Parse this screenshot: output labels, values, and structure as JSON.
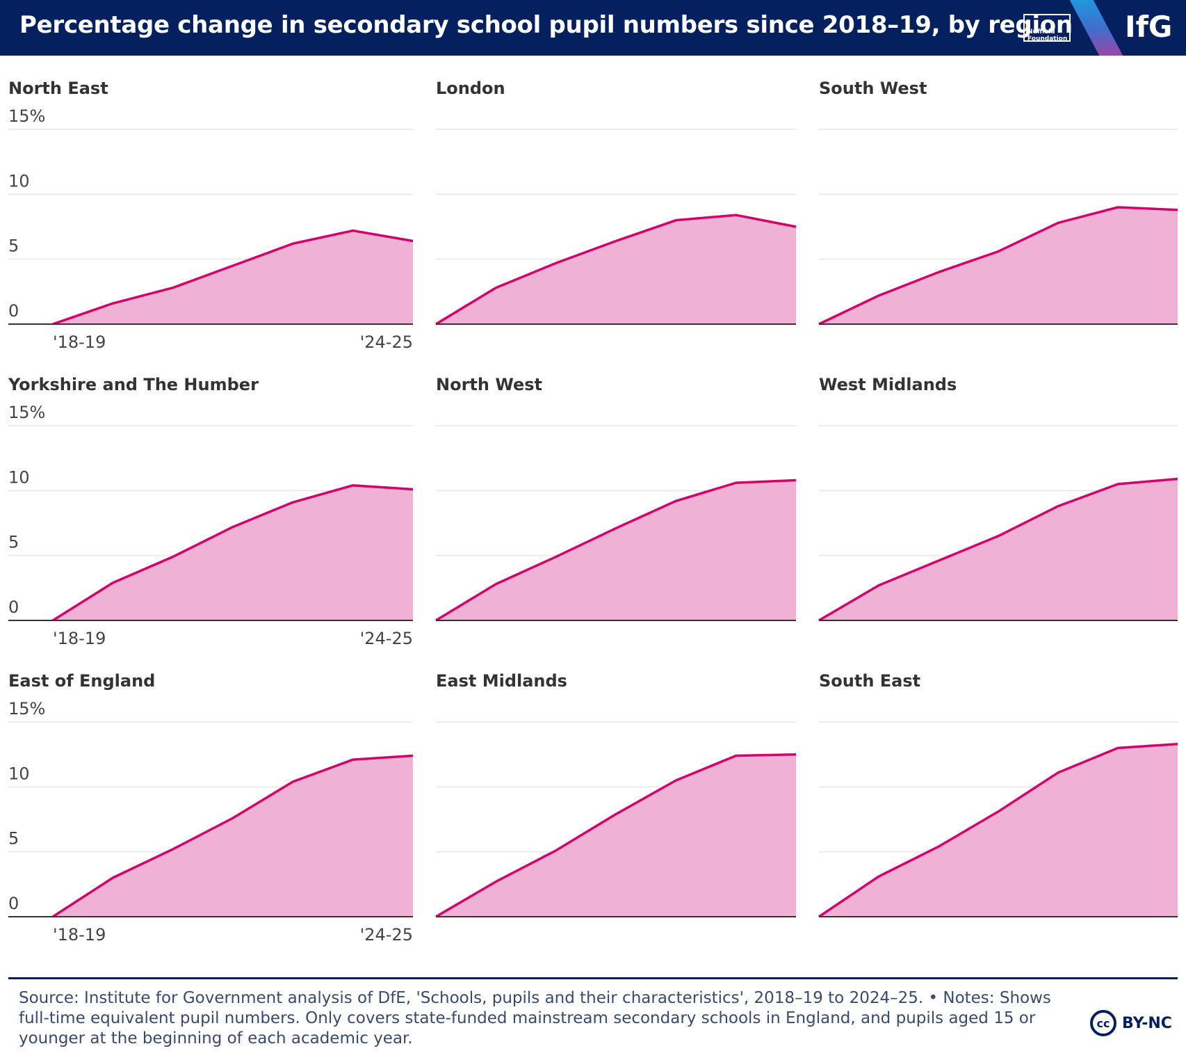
{
  "header": {
    "title": "Percentage change in secondary school pupil numbers since 2018–19, by region",
    "nuffield_logo": "Nuffield Foundation",
    "ifg_logo": "IfG"
  },
  "colors": {
    "header_bg": "#05205e",
    "line": "#d4006b",
    "area": "#f0b2d4",
    "grid": "#e6e6e6",
    "axis": "#333333"
  },
  "chart_data": [
    {
      "type": "area",
      "title": "North East",
      "x": [
        "'18-19",
        "'19-20",
        "'20-21",
        "'21-22",
        "'22-23",
        "'23-24",
        "'24-25"
      ],
      "y": [
        0,
        1.6,
        2.8,
        4.5,
        6.2,
        7.2,
        6.4
      ],
      "ylim": [
        0,
        15
      ],
      "yticks": [
        "0",
        "5",
        "10",
        "15%"
      ],
      "xtick_labels": [
        "'18-19",
        "'24-25"
      ]
    },
    {
      "type": "area",
      "title": "London",
      "x": [
        "'18-19",
        "'19-20",
        "'20-21",
        "'21-22",
        "'22-23",
        "'23-24",
        "'24-25"
      ],
      "y": [
        0,
        2.8,
        4.7,
        6.4,
        8.0,
        8.4,
        7.5
      ],
      "ylim": [
        0,
        15
      ]
    },
    {
      "type": "area",
      "title": "South West",
      "x": [
        "'18-19",
        "'19-20",
        "'20-21",
        "'21-22",
        "'22-23",
        "'23-24",
        "'24-25"
      ],
      "y": [
        0,
        2.2,
        4.0,
        5.6,
        7.8,
        9.0,
        8.8
      ],
      "ylim": [
        0,
        15
      ]
    },
    {
      "type": "area",
      "title": "Yorkshire and The Humber",
      "x": [
        "'18-19",
        "'19-20",
        "'20-21",
        "'21-22",
        "'22-23",
        "'23-24",
        "'24-25"
      ],
      "y": [
        0,
        2.9,
        4.9,
        7.2,
        9.1,
        10.4,
        10.1
      ],
      "ylim": [
        0,
        15
      ],
      "yticks": [
        "0",
        "5",
        "10",
        "15%"
      ],
      "xtick_labels": [
        "'18-19",
        "'24-25"
      ]
    },
    {
      "type": "area",
      "title": "North West",
      "x": [
        "'18-19",
        "'19-20",
        "'20-21",
        "'21-22",
        "'22-23",
        "'23-24",
        "'24-25"
      ],
      "y": [
        0,
        2.8,
        4.9,
        7.1,
        9.2,
        10.6,
        10.8
      ],
      "ylim": [
        0,
        15
      ]
    },
    {
      "type": "area",
      "title": "West Midlands",
      "x": [
        "'18-19",
        "'19-20",
        "'20-21",
        "'21-22",
        "'22-23",
        "'23-24",
        "'24-25"
      ],
      "y": [
        0,
        2.7,
        4.6,
        6.5,
        8.8,
        10.5,
        10.9
      ],
      "ylim": [
        0,
        15
      ]
    },
    {
      "type": "area",
      "title": "East of England",
      "x": [
        "'18-19",
        "'19-20",
        "'20-21",
        "'21-22",
        "'22-23",
        "'23-24",
        "'24-25"
      ],
      "y": [
        0,
        3.0,
        5.2,
        7.6,
        10.4,
        12.1,
        12.4
      ],
      "ylim": [
        0,
        15
      ],
      "yticks": [
        "0",
        "5",
        "10",
        "15%"
      ],
      "xtick_labels": [
        "'18-19",
        "'24-25"
      ]
    },
    {
      "type": "area",
      "title": "East Midlands",
      "x": [
        "'18-19",
        "'19-20",
        "'20-21",
        "'21-22",
        "'22-23",
        "'23-24",
        "'24-25"
      ],
      "y": [
        0,
        2.7,
        5.1,
        7.9,
        10.5,
        12.4,
        12.5
      ],
      "ylim": [
        0,
        15
      ]
    },
    {
      "type": "area",
      "title": "South East",
      "x": [
        "'18-19",
        "'19-20",
        "'20-21",
        "'21-22",
        "'22-23",
        "'23-24",
        "'24-25"
      ],
      "y": [
        0,
        3.1,
        5.4,
        8.1,
        11.1,
        13.0,
        13.3
      ],
      "ylim": [
        0,
        15
      ]
    }
  ],
  "footer": {
    "source": "Source: Institute for Government analysis of DfE, 'Schools, pupils and their characteristics', 2018–19 to 2024–25. • Notes: Shows full-time equivalent pupil numbers. Only covers state-funded mainstream secondary schools in England, and pupils aged 15 or younger at the beginning of each academic year.",
    "cc_icon": "cc",
    "license": "BY-NC"
  }
}
